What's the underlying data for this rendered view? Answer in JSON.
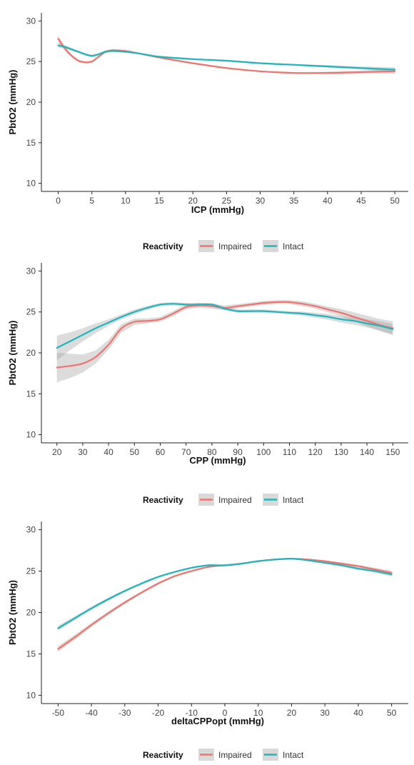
{
  "colors": {
    "Impaired": "#F0746E",
    "Intact": "#1FB5BE"
  },
  "chart_data": [
    {
      "type": "line",
      "xlabel": "ICP (mmHg)",
      "ylabel": "PbtO2 (mmHg)",
      "xlim": [
        -2.5,
        52
      ],
      "ylim": [
        9,
        31
      ],
      "xticks": [
        0,
        5,
        10,
        15,
        20,
        25,
        30,
        35,
        40,
        45,
        50
      ],
      "yticks": [
        10,
        15,
        20,
        25,
        30
      ],
      "legend": {
        "title": "Reactivity",
        "entries": [
          "Impaired",
          "Intact"
        ],
        "position": "bottom"
      },
      "series": [
        {
          "name": "Impaired",
          "x": [
            0,
            1,
            2,
            3,
            4,
            5,
            6,
            7,
            8,
            10,
            12,
            15,
            20,
            25,
            30,
            35,
            40,
            45,
            50
          ],
          "y": [
            27.8,
            26.6,
            25.7,
            25.1,
            24.9,
            25.0,
            25.6,
            26.2,
            26.4,
            26.3,
            26.0,
            25.5,
            24.8,
            24.2,
            23.8,
            23.6,
            23.6,
            23.7,
            23.8
          ],
          "ci_halfwidth": [
            0.4,
            0.3,
            0.2,
            0.15,
            0.15,
            0.15,
            0.15,
            0.15,
            0.1,
            0.1,
            0.1,
            0.1,
            0.1,
            0.1,
            0.1,
            0.1,
            0.15,
            0.2,
            0.3
          ]
        },
        {
          "name": "Intact",
          "x": [
            0,
            1,
            2,
            3,
            4,
            5,
            6,
            7,
            8,
            10,
            12,
            15,
            20,
            25,
            30,
            35,
            40,
            45,
            50
          ],
          "y": [
            27.0,
            26.8,
            26.5,
            26.2,
            25.9,
            25.7,
            25.9,
            26.2,
            26.3,
            26.2,
            26.0,
            25.6,
            25.3,
            25.1,
            24.8,
            24.6,
            24.4,
            24.2,
            24.0
          ],
          "ci_halfwidth": [
            0.3,
            0.2,
            0.2,
            0.15,
            0.15,
            0.15,
            0.15,
            0.15,
            0.1,
            0.1,
            0.1,
            0.1,
            0.1,
            0.1,
            0.1,
            0.1,
            0.15,
            0.2,
            0.3
          ]
        }
      ]
    },
    {
      "type": "line",
      "xlabel": "CPP (mmHg)",
      "ylabel": "PbtO2 (mmHg)",
      "xlim": [
        14,
        156
      ],
      "ylim": [
        9,
        31
      ],
      "xticks": [
        20,
        30,
        40,
        50,
        60,
        70,
        80,
        90,
        100,
        110,
        120,
        130,
        140,
        150
      ],
      "yticks": [
        10,
        15,
        20,
        25,
        30
      ],
      "legend": {
        "title": "Reactivity",
        "entries": [
          "Impaired",
          "Intact"
        ],
        "position": "bottom"
      },
      "series": [
        {
          "name": "Impaired",
          "x": [
            20,
            25,
            30,
            35,
            40,
            45,
            50,
            55,
            60,
            65,
            70,
            75,
            80,
            85,
            90,
            95,
            100,
            105,
            110,
            115,
            120,
            125,
            130,
            135,
            140,
            145,
            150
          ],
          "y": [
            18.2,
            18.4,
            18.7,
            19.5,
            21.0,
            23.0,
            23.8,
            23.9,
            24.1,
            24.8,
            25.6,
            25.8,
            25.7,
            25.5,
            25.7,
            25.9,
            26.1,
            26.2,
            26.2,
            26.0,
            25.7,
            25.3,
            24.9,
            24.4,
            23.9,
            23.4,
            23.0
          ],
          "ci_halfwidth": [
            1.8,
            1.5,
            1.1,
            0.8,
            0.6,
            0.5,
            0.4,
            0.3,
            0.3,
            0.3,
            0.3,
            0.3,
            0.3,
            0.3,
            0.25,
            0.25,
            0.25,
            0.25,
            0.25,
            0.3,
            0.3,
            0.35,
            0.45,
            0.55,
            0.65,
            0.75,
            0.85
          ]
        },
        {
          "name": "Intact",
          "x": [
            20,
            25,
            30,
            35,
            40,
            45,
            50,
            55,
            60,
            65,
            70,
            75,
            80,
            85,
            90,
            95,
            100,
            105,
            110,
            115,
            120,
            125,
            130,
            135,
            140,
            145,
            150
          ],
          "y": [
            20.6,
            21.4,
            22.2,
            23.0,
            23.7,
            24.4,
            25.0,
            25.5,
            25.9,
            26.0,
            25.9,
            25.9,
            25.9,
            25.4,
            25.1,
            25.1,
            25.1,
            25.0,
            24.9,
            24.8,
            24.6,
            24.4,
            24.1,
            23.9,
            23.6,
            23.3,
            22.9
          ],
          "ci_halfwidth": [
            1.5,
            1.1,
            0.8,
            0.6,
            0.4,
            0.3,
            0.3,
            0.25,
            0.2,
            0.2,
            0.2,
            0.2,
            0.2,
            0.2,
            0.2,
            0.2,
            0.2,
            0.2,
            0.2,
            0.25,
            0.3,
            0.35,
            0.4,
            0.45,
            0.5,
            0.55,
            0.6
          ]
        }
      ]
    },
    {
      "type": "line",
      "xlabel": "deltaCPPopt (mmHg)",
      "ylabel": "PbtO2 (mmHg)",
      "xlim": [
        -55,
        55
      ],
      "ylim": [
        9,
        31
      ],
      "xticks": [
        -50,
        -40,
        -30,
        -20,
        -10,
        0,
        10,
        20,
        30,
        40,
        50
      ],
      "yticks": [
        10,
        15,
        20,
        25,
        30
      ],
      "legend": {
        "title": "Reactivity",
        "entries": [
          "Impaired",
          "Intact"
        ],
        "position": "bottom"
      },
      "series": [
        {
          "name": "Impaired",
          "x": [
            -50,
            -45,
            -40,
            -35,
            -30,
            -25,
            -20,
            -15,
            -10,
            -5,
            0,
            5,
            10,
            15,
            20,
            25,
            30,
            35,
            40,
            45,
            50
          ],
          "y": [
            15.6,
            17.0,
            18.5,
            19.9,
            21.2,
            22.4,
            23.5,
            24.4,
            25.0,
            25.5,
            25.7,
            25.9,
            26.2,
            26.4,
            26.5,
            26.4,
            26.2,
            25.9,
            25.6,
            25.2,
            24.8
          ],
          "ci_halfwidth": [
            0.35,
            0.3,
            0.25,
            0.2,
            0.2,
            0.15,
            0.15,
            0.1,
            0.1,
            0.1,
            0.1,
            0.1,
            0.1,
            0.1,
            0.1,
            0.1,
            0.1,
            0.15,
            0.15,
            0.2,
            0.25
          ]
        },
        {
          "name": "Intact",
          "x": [
            -50,
            -45,
            -40,
            -35,
            -30,
            -25,
            -20,
            -15,
            -10,
            -5,
            0,
            5,
            10,
            15,
            20,
            25,
            30,
            35,
            40,
            45,
            50
          ],
          "y": [
            18.1,
            19.3,
            20.5,
            21.6,
            22.6,
            23.5,
            24.3,
            24.9,
            25.4,
            25.7,
            25.7,
            25.9,
            26.2,
            26.4,
            26.5,
            26.3,
            26.0,
            25.7,
            25.3,
            25.0,
            24.6
          ],
          "ci_halfwidth": [
            0.3,
            0.25,
            0.2,
            0.2,
            0.15,
            0.15,
            0.1,
            0.1,
            0.1,
            0.1,
            0.1,
            0.1,
            0.1,
            0.1,
            0.1,
            0.1,
            0.1,
            0.15,
            0.15,
            0.2,
            0.25
          ]
        }
      ]
    }
  ]
}
